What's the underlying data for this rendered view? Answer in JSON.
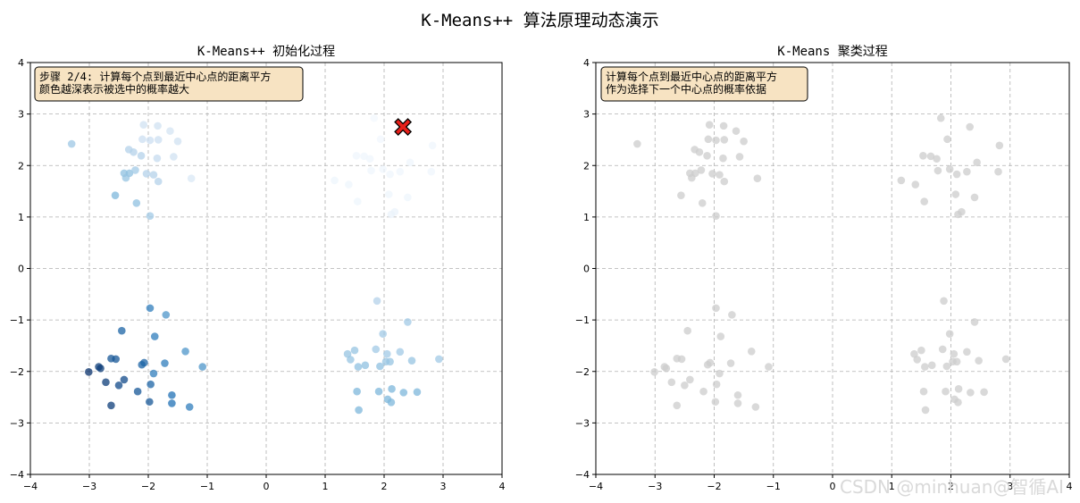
{
  "figure_title": "K-Means++ 算法原理动态演示",
  "watermark": "CSDN @minhuan@智循AI",
  "colors": {
    "center_marker": "#e8201a",
    "annotation_bg": "#f7e3c2",
    "gray_points": "#cccccc"
  },
  "chart_data": [
    {
      "type": "scatter",
      "title": "K-Means++ 初始化过程",
      "xlim": [
        -4,
        4
      ],
      "ylim": [
        -4,
        4
      ],
      "xticks": [
        -4,
        -3,
        -2,
        -1,
        0,
        1,
        2,
        3,
        4
      ],
      "yticks": [
        -4,
        -3,
        -2,
        -1,
        0,
        1,
        2,
        3,
        4
      ],
      "grid": true,
      "color_scale": "Blues (darker = higher selection probability)",
      "annotation": [
        "步骤 2/4: 计算每个点到最近中心点的距离平方",
        "颜色越深表示被选中的概率越大"
      ],
      "selected_center": [
        2.32,
        2.75
      ],
      "points": [
        [
          -3.3,
          2.42,
          0.36
        ],
        [
          -2.08,
          2.79,
          0.2
        ],
        [
          -1.84,
          2.77,
          0.2
        ],
        [
          -1.63,
          2.67,
          0.18
        ],
        [
          -2.1,
          2.51,
          0.22
        ],
        [
          -1.97,
          2.49,
          0.22
        ],
        [
          -1.83,
          2.5,
          0.22
        ],
        [
          -1.5,
          2.47,
          0.2
        ],
        [
          -2.33,
          2.31,
          0.3
        ],
        [
          -2.25,
          2.26,
          0.3
        ],
        [
          -2.12,
          2.19,
          0.3
        ],
        [
          -1.57,
          2.17,
          0.2
        ],
        [
          -1.85,
          2.14,
          0.25
        ],
        [
          -2.41,
          1.85,
          0.4
        ],
        [
          -2.32,
          1.85,
          0.4
        ],
        [
          -2.22,
          1.91,
          0.35
        ],
        [
          -2.03,
          1.84,
          0.3
        ],
        [
          -1.91,
          1.82,
          0.3
        ],
        [
          -2.38,
          1.76,
          0.38
        ],
        [
          -1.83,
          1.69,
          0.3
        ],
        [
          -1.27,
          1.75,
          0.15
        ],
        [
          -2.56,
          1.42,
          0.45
        ],
        [
          -2.2,
          1.27,
          0.4
        ],
        [
          -1.97,
          1.02,
          0.35
        ],
        [
          1.83,
          2.92,
          0.02
        ],
        [
          2.32,
          2.75,
          0.0
        ],
        [
          1.94,
          2.51,
          0.03
        ],
        [
          2.82,
          2.39,
          0.04
        ],
        [
          1.53,
          2.19,
          0.04
        ],
        [
          1.66,
          2.18,
          0.04
        ],
        [
          1.76,
          2.13,
          0.04
        ],
        [
          2.44,
          2.06,
          0.04
        ],
        [
          1.98,
          1.93,
          0.04
        ],
        [
          1.78,
          1.9,
          0.04
        ],
        [
          2.27,
          1.88,
          0.04
        ],
        [
          2.1,
          1.83,
          0.04
        ],
        [
          2.8,
          1.88,
          0.04
        ],
        [
          1.16,
          1.71,
          0.05
        ],
        [
          1.4,
          1.63,
          0.05
        ],
        [
          2.08,
          1.44,
          0.05
        ],
        [
          1.55,
          1.3,
          0.05
        ],
        [
          2.4,
          1.38,
          0.05
        ],
        [
          2.12,
          1.05,
          0.06
        ],
        [
          2.18,
          1.1,
          0.06
        ],
        [
          -1.97,
          -0.77,
          0.7
        ],
        [
          -1.7,
          -0.9,
          0.6
        ],
        [
          -2.45,
          -1.21,
          0.8
        ],
        [
          -1.89,
          -1.32,
          0.7
        ],
        [
          -1.37,
          -1.61,
          0.6
        ],
        [
          -2.63,
          -1.75,
          0.85
        ],
        [
          -2.55,
          -1.76,
          0.85
        ],
        [
          -2.07,
          -1.83,
          0.8
        ],
        [
          -2.11,
          -1.87,
          0.8
        ],
        [
          -1.72,
          -1.84,
          0.7
        ],
        [
          -3.01,
          -2.01,
          1.0
        ],
        [
          -2.84,
          -1.91,
          0.95
        ],
        [
          -2.81,
          -1.94,
          0.95
        ],
        [
          -1.91,
          -2.04,
          0.7
        ],
        [
          -1.08,
          -1.91,
          0.6
        ],
        [
          -2.41,
          -2.16,
          0.9
        ],
        [
          -2.72,
          -2.21,
          0.95
        ],
        [
          -1.96,
          -2.25,
          0.8
        ],
        [
          -2.5,
          -2.27,
          0.9
        ],
        [
          -2.18,
          -2.39,
          0.85
        ],
        [
          -1.6,
          -2.46,
          0.75
        ],
        [
          -1.98,
          -2.59,
          0.85
        ],
        [
          -1.6,
          -2.62,
          0.75
        ],
        [
          -2.63,
          -2.66,
          0.95
        ],
        [
          -1.3,
          -2.69,
          0.7
        ],
        [
          1.88,
          -0.63,
          0.3
        ],
        [
          2.4,
          -1.04,
          0.35
        ],
        [
          1.98,
          -1.27,
          0.35
        ],
        [
          1.5,
          -1.59,
          0.38
        ],
        [
          1.38,
          -1.66,
          0.38
        ],
        [
          1.86,
          -1.57,
          0.35
        ],
        [
          2.05,
          -1.66,
          0.35
        ],
        [
          2.27,
          -1.62,
          0.35
        ],
        [
          1.43,
          -1.77,
          0.38
        ],
        [
          2.03,
          -1.81,
          0.38
        ],
        [
          2.1,
          -1.81,
          0.38
        ],
        [
          2.47,
          -1.79,
          0.38
        ],
        [
          2.93,
          -1.76,
          0.35
        ],
        [
          1.68,
          -1.88,
          0.4
        ],
        [
          1.56,
          -1.91,
          0.4
        ],
        [
          1.93,
          -1.9,
          0.4
        ],
        [
          1.54,
          -2.39,
          0.45
        ],
        [
          1.91,
          -2.39,
          0.45
        ],
        [
          2.13,
          -2.34,
          0.45
        ],
        [
          2.33,
          -2.41,
          0.45
        ],
        [
          2.56,
          -2.4,
          0.45
        ],
        [
          2.06,
          -2.54,
          0.45
        ],
        [
          2.12,
          -2.6,
          0.45
        ],
        [
          1.57,
          -2.75,
          0.45
        ]
      ]
    },
    {
      "type": "scatter",
      "title": "K-Means 聚类过程",
      "xlim": [
        -4,
        4
      ],
      "ylim": [
        -4,
        4
      ],
      "xticks": [
        -4,
        -3,
        -2,
        -1,
        0,
        1,
        2,
        3,
        4
      ],
      "yticks": [
        -4,
        -3,
        -2,
        -1,
        0,
        1,
        2,
        3,
        4
      ],
      "grid": true,
      "annotation": [
        "计算每个点到最近中心点的距离平方",
        "作为选择下一个中心点的概率依据"
      ],
      "points": [
        [
          -3.3,
          2.42
        ],
        [
          -2.08,
          2.79
        ],
        [
          -1.84,
          2.77
        ],
        [
          -1.63,
          2.67
        ],
        [
          -2.1,
          2.51
        ],
        [
          -1.97,
          2.49
        ],
        [
          -1.83,
          2.5
        ],
        [
          -1.5,
          2.47
        ],
        [
          -2.33,
          2.31
        ],
        [
          -2.25,
          2.26
        ],
        [
          -2.12,
          2.19
        ],
        [
          -1.57,
          2.17
        ],
        [
          -1.85,
          2.14
        ],
        [
          -2.41,
          1.85
        ],
        [
          -2.32,
          1.85
        ],
        [
          -2.22,
          1.91
        ],
        [
          -2.03,
          1.84
        ],
        [
          -1.91,
          1.82
        ],
        [
          -2.38,
          1.76
        ],
        [
          -1.83,
          1.69
        ],
        [
          -1.27,
          1.75
        ],
        [
          -2.56,
          1.42
        ],
        [
          -2.2,
          1.27
        ],
        [
          -1.97,
          1.02
        ],
        [
          1.83,
          2.92
        ],
        [
          2.32,
          2.75
        ],
        [
          1.94,
          2.51
        ],
        [
          2.82,
          2.39
        ],
        [
          1.53,
          2.19
        ],
        [
          1.66,
          2.18
        ],
        [
          1.76,
          2.13
        ],
        [
          2.44,
          2.06
        ],
        [
          1.98,
          1.93
        ],
        [
          1.78,
          1.9
        ],
        [
          2.27,
          1.88
        ],
        [
          2.1,
          1.83
        ],
        [
          2.8,
          1.88
        ],
        [
          1.16,
          1.71
        ],
        [
          1.4,
          1.63
        ],
        [
          2.08,
          1.44
        ],
        [
          1.55,
          1.3
        ],
        [
          2.4,
          1.38
        ],
        [
          2.12,
          1.05
        ],
        [
          2.18,
          1.1
        ],
        [
          -1.97,
          -0.77
        ],
        [
          -1.7,
          -0.9
        ],
        [
          -2.45,
          -1.21
        ],
        [
          -1.89,
          -1.32
        ],
        [
          -1.37,
          -1.61
        ],
        [
          -2.63,
          -1.75
        ],
        [
          -2.55,
          -1.76
        ],
        [
          -2.07,
          -1.83
        ],
        [
          -2.11,
          -1.87
        ],
        [
          -1.72,
          -1.84
        ],
        [
          -3.01,
          -2.01
        ],
        [
          -2.84,
          -1.91
        ],
        [
          -2.81,
          -1.94
        ],
        [
          -1.91,
          -2.04
        ],
        [
          -1.08,
          -1.91
        ],
        [
          -2.41,
          -2.16
        ],
        [
          -2.72,
          -2.21
        ],
        [
          -1.96,
          -2.25
        ],
        [
          -2.5,
          -2.27
        ],
        [
          -2.18,
          -2.39
        ],
        [
          -1.6,
          -2.46
        ],
        [
          -1.98,
          -2.59
        ],
        [
          -1.6,
          -2.62
        ],
        [
          -2.63,
          -2.66
        ],
        [
          -1.3,
          -2.69
        ],
        [
          1.88,
          -0.63
        ],
        [
          2.4,
          -1.04
        ],
        [
          1.98,
          -1.27
        ],
        [
          1.5,
          -1.59
        ],
        [
          1.38,
          -1.66
        ],
        [
          1.86,
          -1.57
        ],
        [
          2.05,
          -1.66
        ],
        [
          2.27,
          -1.62
        ],
        [
          1.43,
          -1.77
        ],
        [
          2.03,
          -1.81
        ],
        [
          2.1,
          -1.81
        ],
        [
          2.47,
          -1.79
        ],
        [
          2.93,
          -1.76
        ],
        [
          1.68,
          -1.88
        ],
        [
          1.56,
          -1.91
        ],
        [
          1.93,
          -1.9
        ],
        [
          1.54,
          -2.39
        ],
        [
          1.91,
          -2.39
        ],
        [
          2.13,
          -2.34
        ],
        [
          2.33,
          -2.41
        ],
        [
          2.56,
          -2.4
        ],
        [
          2.06,
          -2.54
        ],
        [
          2.12,
          -2.6
        ],
        [
          1.57,
          -2.75
        ]
      ]
    }
  ]
}
